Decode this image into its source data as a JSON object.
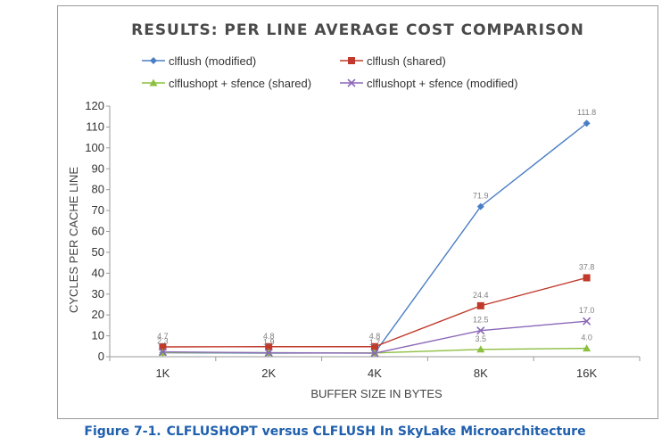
{
  "caption": {
    "figure_number": "Figure 7-1.",
    "text": "CLFLUSHOPT versus CLFLUSH In SkyLake Microarchitecture"
  },
  "chart_data": {
    "type": "line",
    "title": "RESULTS: PER LINE AVERAGE COST COMPARISON",
    "xlabel": "BUFFER SIZE IN BYTES",
    "ylabel": "CYCLES PER CACHE LINE",
    "categories": [
      "1K",
      "2K",
      "4K",
      "8K",
      "16K"
    ],
    "ylim": [
      0,
      120
    ],
    "yticks": [
      0,
      10,
      20,
      30,
      40,
      50,
      60,
      70,
      80,
      90,
      100,
      110,
      120
    ],
    "grid": false,
    "legend_position": "top",
    "series": [
      {
        "name": "clflush (modified)",
        "color": "#4a7ec4",
        "marker": "diamond",
        "values": [
          1.9,
          1.7,
          1.8,
          71.9,
          111.8
        ],
        "labels": [
          "",
          "",
          "",
          "71.9",
          "111.8"
        ]
      },
      {
        "name": "clflush (shared)",
        "color": "#c0392b",
        "marker": "square",
        "values": [
          4.7,
          4.8,
          4.8,
          24.4,
          37.8
        ],
        "labels": [
          "4.7",
          "4.8",
          "4.8",
          "24.4",
          "37.8"
        ]
      },
      {
        "name": "clflushopt + sfence (shared)",
        "color": "#8cbf3f",
        "marker": "triangle",
        "values": [
          2.0,
          1.9,
          1.8,
          3.5,
          4.0
        ],
        "labels": [
          "",
          "",
          "",
          "3.5",
          "4.0"
        ]
      },
      {
        "name": "clflushopt + sfence (modified)",
        "color": "#8b68b8",
        "marker": "x",
        "values": [
          2.3,
          1.9,
          1.7,
          12.5,
          17.0
        ],
        "labels": [
          "2.3",
          "1.9",
          "1.7",
          "12.5",
          "17.0"
        ]
      }
    ]
  }
}
